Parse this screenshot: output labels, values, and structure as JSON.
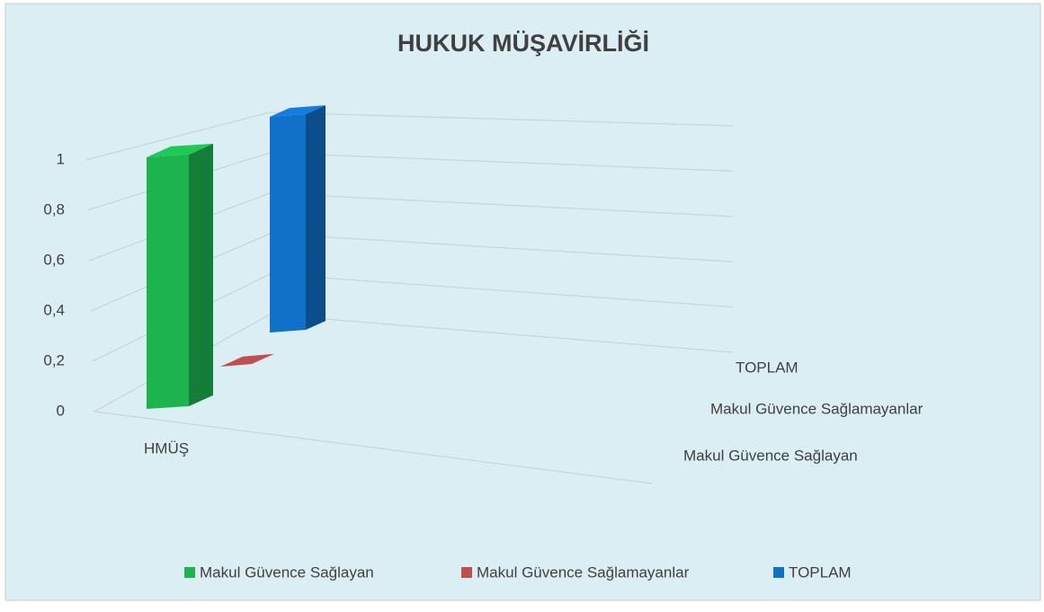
{
  "chart_data": {
    "type": "bar3d",
    "title": "HUKUK MÜŞAVİRLİĞİ",
    "categories": [
      "HMÜŞ"
    ],
    "series": [
      {
        "name": "Makul Güvence Sağlayan",
        "color": "#1db34f",
        "values": [
          1
        ]
      },
      {
        "name": "Makul Güvence Sağlamayanlar",
        "color": "#c0504d",
        "values": [
          0
        ]
      },
      {
        "name": "TOPLAM",
        "color": "#1170c8",
        "values": [
          1
        ]
      }
    ],
    "ylim": [
      0,
      1
    ],
    "yticks": [
      0,
      {
        "value": 0.2,
        "label": "0,2"
      },
      {
        "value": 0.4,
        "label": "0,4"
      },
      {
        "value": 0.6,
        "label": "0,6"
      },
      {
        "value": 0.8,
        "label": "0,8"
      },
      1
    ],
    "grid": true,
    "legend": "bottom"
  }
}
